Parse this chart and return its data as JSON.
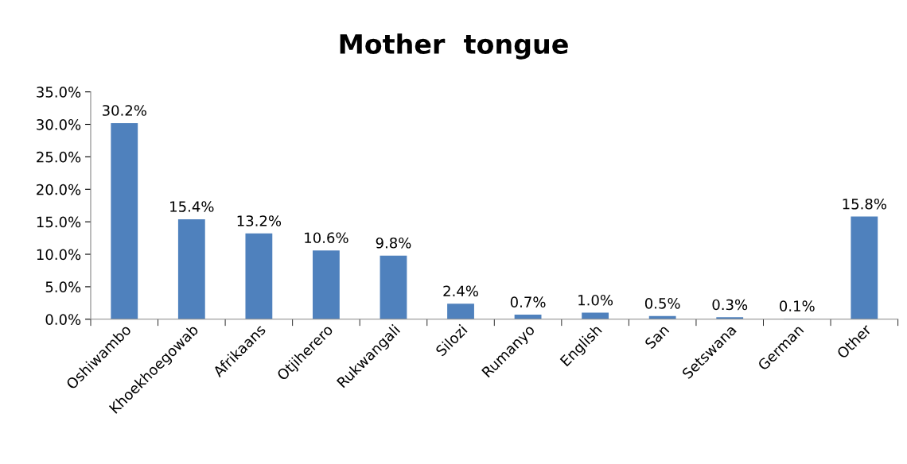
{
  "chart_data": {
    "type": "bar",
    "title": "Mother  tongue",
    "categories": [
      "Oshiwambo",
      "Khoekhoegowab",
      "Afrikaans",
      "Otjiherero",
      "Rukwangali",
      "Silozi",
      "Rumanyo",
      "English",
      "San",
      "Setswana",
      "German",
      "Other"
    ],
    "values": [
      30.2,
      15.4,
      13.2,
      10.6,
      9.8,
      2.4,
      0.7,
      1.0,
      0.5,
      0.3,
      0.1,
      15.8
    ],
    "value_labels": [
      "30.2%",
      "15.4%",
      "13.2%",
      "10.6%",
      "9.8%",
      "2.4%",
      "0.7%",
      "1.0%",
      "0.5%",
      "0.3%",
      "0.1%",
      "15.8%"
    ],
    "color": "#4f81bd",
    "ylim": [
      0,
      35
    ],
    "yticks": [
      {
        "value": 0,
        "label": "0.0%"
      },
      {
        "value": 5,
        "label": "5.0%"
      },
      {
        "value": 10,
        "label": "10.0%"
      },
      {
        "value": 15,
        "label": "15.0%"
      },
      {
        "value": 20,
        "label": "20.0%"
      },
      {
        "value": 25,
        "label": "25.0%"
      },
      {
        "value": 30,
        "label": "30.0%"
      },
      {
        "value": 35,
        "label": "35.0%"
      }
    ],
    "grid": false,
    "legend": false
  }
}
